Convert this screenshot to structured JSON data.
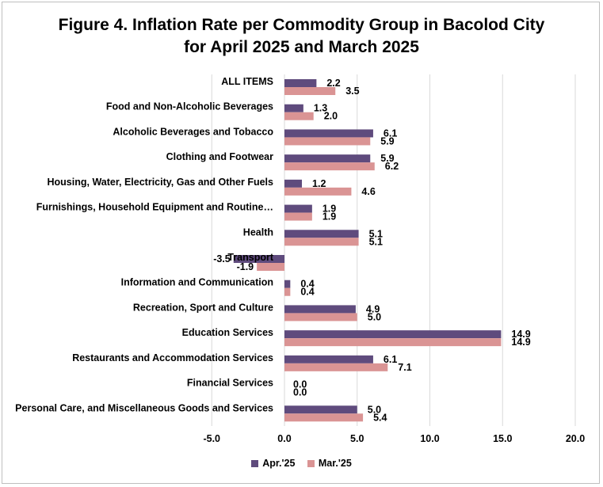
{
  "chart_data": {
    "type": "bar",
    "orientation": "horizontal",
    "title": "Figure 4. Inflation Rate per Commodity Group in Bacolod City",
    "subtitle": "for April 2025 and March 2025",
    "categories": [
      "ALL ITEMS",
      "Food and Non-Alcoholic Beverages",
      "Alcoholic Beverages and Tobacco",
      "Clothing and Footwear",
      "Housing, Water, Electricity, Gas and Other Fuels",
      "Furnishings, Household Equipment and Routine…",
      "Health",
      "Transport",
      "Information and Communication",
      "Recreation, Sport and Culture",
      "Education Services",
      "Restaurants and Accommodation Services",
      "Financial Services",
      "Personal Care, and Miscellaneous Goods and Services"
    ],
    "series": [
      {
        "name": "Apr.'25",
        "color": "#5f4b7d",
        "values": [
          2.2,
          1.3,
          6.1,
          5.9,
          1.2,
          1.9,
          5.1,
          -3.5,
          0.4,
          4.9,
          14.9,
          6.1,
          0.0,
          5.0
        ],
        "labels": [
          "2.2",
          "1.3",
          "6.1",
          "5.9",
          "1.2",
          "1.9",
          "5.1",
          "-3.5",
          "0.4",
          "4.9",
          "14.9",
          "6.1",
          "0.0",
          "5.0"
        ]
      },
      {
        "name": "Mar.'25",
        "color": "#da9494",
        "values": [
          3.5,
          2.0,
          5.9,
          6.2,
          4.6,
          1.9,
          5.1,
          -1.9,
          0.4,
          5.0,
          14.9,
          7.1,
          0.0,
          5.4
        ],
        "labels": [
          "3.5",
          "2.0",
          "5.9",
          "6.2",
          "4.6",
          "1.9",
          "5.1",
          "-1.9",
          "0.4",
          "5.0",
          "14.9",
          "7.1",
          "0.0",
          "5.4"
        ]
      }
    ],
    "xlim": [
      -5,
      20
    ],
    "xticks": [
      "-5.0",
      "0.0",
      "5.0",
      "10.0",
      "15.0",
      "20.0"
    ],
    "xtick_values": [
      -5,
      0,
      5,
      10,
      15,
      20
    ],
    "grid": "vertical",
    "legend_position": "bottom-center",
    "gridline_color": "#d9d9d9"
  }
}
